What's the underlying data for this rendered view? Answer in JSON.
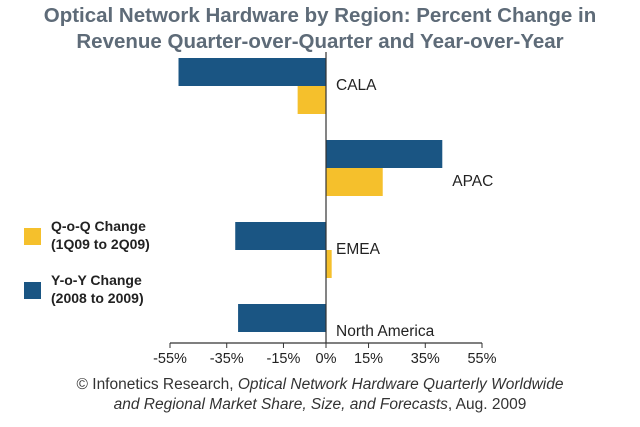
{
  "chart_data": {
    "type": "bar",
    "orientation": "horizontal",
    "title_lines": [
      "Optical Network Hardware by Region: Percent Change in",
      "Revenue Quarter-over-Quarter and Year-over-Year"
    ],
    "categories": [
      "CALA",
      "APAC",
      "EMEA",
      "North America"
    ],
    "series": [
      {
        "name": "Q-o-Q Change",
        "name_sub": "(1Q09 to 2Q09)",
        "color": "#f5c02c",
        "values": [
          -10,
          20,
          2,
          0
        ]
      },
      {
        "name": "Y-o-Y Change",
        "name_sub": "(2008 to 2009)",
        "color": "#1a5583",
        "values": [
          -52,
          41,
          -32,
          -31
        ]
      }
    ],
    "xlim": [
      -55,
      55
    ],
    "x_ticks": [
      -55,
      -35,
      -15,
      0,
      15,
      35,
      55
    ],
    "x_tick_labels": [
      "-55%",
      "-35%",
      "-15%",
      "0%",
      "15%",
      "35%",
      "55%"
    ],
    "legend_position": "left",
    "grid": false
  },
  "source": {
    "prefix": "© Infonetics Research, ",
    "title_part1": "Optical Network Hardware Quarterly Worldwide",
    "title_part2": "and Regional Market Share, Size, and Forecasts",
    "suffix": ", Aug. 2009"
  }
}
